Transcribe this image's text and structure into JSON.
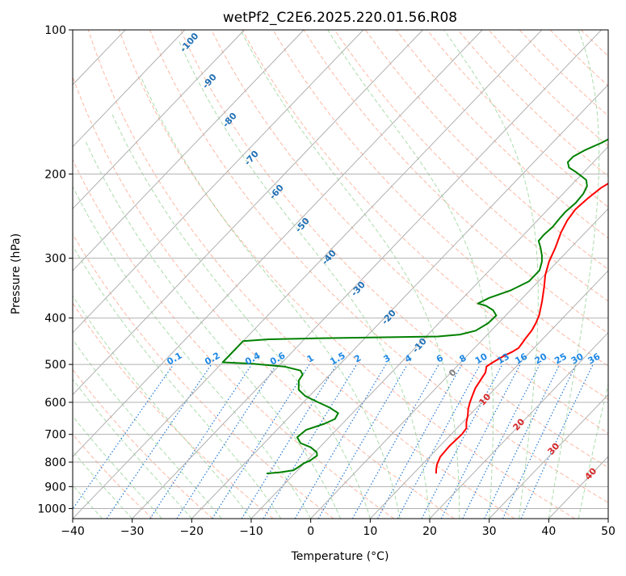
{
  "chart_data": {
    "type": "line",
    "title": "wetPf2_C2E6.2025.220.01.56.R08",
    "xlabel": "Temperature (°C)",
    "ylabel": "Pressure (hPa)",
    "xlim": [
      -40,
      50
    ],
    "ylim": [
      1050,
      100
    ],
    "y_scale": "log",
    "grid": true,
    "x_ticks": [
      -40,
      -30,
      -20,
      -10,
      0,
      10,
      20,
      30,
      40,
      50
    ],
    "y_ticks": [
      100,
      200,
      300,
      400,
      500,
      600,
      700,
      800,
      900,
      1000
    ],
    "x_tick_labels": [
      "−40",
      "−30",
      "−20",
      "−10",
      "0",
      "10",
      "20",
      "30",
      "40",
      "50"
    ],
    "y_tick_labels": [
      "100",
      "200",
      "300",
      "400",
      "500",
      "600",
      "700",
      "800",
      "900",
      "1000"
    ],
    "series": [
      {
        "color": "#ff0000",
        "points": [
          [
            13.8,
            845
          ],
          [
            13.2,
            830
          ],
          [
            12.5,
            810
          ],
          [
            11.8,
            780
          ],
          [
            11.6,
            740
          ],
          [
            11.8,
            700
          ],
          [
            11.6,
            680
          ],
          [
            10.6,
            660
          ],
          [
            9.8,
            640
          ],
          [
            8.8,
            620
          ],
          [
            8,
            600
          ],
          [
            7.3,
            580
          ],
          [
            6.6,
            560
          ],
          [
            6.2,
            540
          ],
          [
            5.8,
            520
          ],
          [
            5,
            505
          ],
          [
            5.4,
            495
          ],
          [
            6.2,
            480
          ],
          [
            7,
            470
          ],
          [
            7.4,
            462
          ],
          [
            7.2,
            450
          ],
          [
            7,
            440
          ],
          [
            6.8,
            425
          ],
          [
            6.3,
            410
          ],
          [
            5.6,
            395
          ],
          [
            3.9,
            370
          ],
          [
            1.9,
            345
          ],
          [
            0.1,
            325
          ],
          [
            -1.4,
            305
          ],
          [
            -2.6,
            285
          ],
          [
            -4.1,
            265
          ],
          [
            -5,
            250
          ],
          [
            -5.4,
            237
          ],
          [
            -5.1,
            225
          ],
          [
            -4.6,
            214
          ],
          [
            -3.8,
            207
          ],
          [
            -2.4,
            201
          ],
          [
            0.1,
            196
          ],
          [
            2.2,
            192
          ],
          [
            4.6,
            186
          ],
          [
            6.6,
            178
          ],
          [
            8.2,
            170
          ],
          [
            9.7,
            162
          ],
          [
            11,
            154
          ],
          [
            12.4,
            146
          ],
          [
            14,
            139
          ],
          [
            15.5,
            133
          ],
          [
            16.9,
            127
          ],
          [
            17.8,
            120
          ],
          [
            18.8,
            114
          ],
          [
            20.4,
            109
          ],
          [
            22.4,
            104
          ],
          [
            24,
            100
          ]
        ]
      },
      {
        "color": "#008000",
        "points": [
          [
            -14.7,
            845
          ],
          [
            -12.6,
            840
          ],
          [
            -10.7,
            832
          ],
          [
            -10.4,
            820
          ],
          [
            -10.1,
            805
          ],
          [
            -9.5,
            795
          ],
          [
            -9.1,
            775
          ],
          [
            -9.7,
            763
          ],
          [
            -11.5,
            745
          ],
          [
            -13.9,
            730
          ],
          [
            -15.4,
            710
          ],
          [
            -15.1,
            685
          ],
          [
            -13,
            665
          ],
          [
            -12,
            650
          ],
          [
            -12.4,
            632
          ],
          [
            -14.8,
            615
          ],
          [
            -17.5,
            600
          ],
          [
            -20.7,
            582
          ],
          [
            -22.8,
            565
          ],
          [
            -24.3,
            540
          ],
          [
            -24.6,
            525
          ],
          [
            -25.6,
            515
          ],
          [
            -29,
            505
          ],
          [
            -35,
            498
          ],
          [
            -40,
            495
          ],
          [
            -40,
            447
          ],
          [
            -36,
            443
          ],
          [
            -28,
            441
          ],
          [
            -18,
            439
          ],
          [
            -8,
            437
          ],
          [
            -4.6,
            433
          ],
          [
            -2.6,
            425
          ],
          [
            -1.7,
            410
          ],
          [
            -1.6,
            395
          ],
          [
            -3,
            385
          ],
          [
            -4.9,
            377
          ],
          [
            -6.6,
            373
          ],
          [
            -5.6,
            363
          ],
          [
            -3.2,
            350
          ],
          [
            -1.6,
            335
          ],
          [
            -1.6,
            318
          ],
          [
            -2.6,
            305
          ],
          [
            -3.6,
            296
          ],
          [
            -5.1,
            285
          ],
          [
            -6.5,
            276
          ],
          [
            -6.6,
            268
          ],
          [
            -6.4,
            258
          ],
          [
            -6.6,
            248
          ],
          [
            -6.7,
            240
          ],
          [
            -6.4,
            230
          ],
          [
            -6.6,
            220
          ],
          [
            -7.2,
            212
          ],
          [
            -8.3,
            206
          ],
          [
            -9.8,
            202
          ],
          [
            -11.4,
            198
          ],
          [
            -13.2,
            194
          ],
          [
            -14.3,
            189
          ],
          [
            -14.3,
            184
          ],
          [
            -13.3,
            178
          ],
          [
            -11.7,
            172
          ],
          [
            -10.6,
            166
          ],
          [
            -9.6,
            160
          ],
          [
            -9.1,
            154
          ],
          [
            -8.9,
            148
          ],
          [
            -8.5,
            141
          ],
          [
            -7.7,
            135
          ],
          [
            -6.9,
            129
          ],
          [
            -5.9,
            123
          ],
          [
            -4.5,
            117
          ],
          [
            -3.1,
            112
          ],
          [
            -1.7,
            107
          ],
          [
            -0.6,
            103
          ],
          [
            -0.1,
            100
          ]
        ]
      }
    ]
  },
  "overlays": {
    "potential_temperature_labels": [
      "-100",
      "-90",
      "-80",
      "-70",
      "-60",
      "-50",
      "-40",
      "-30",
      "-20",
      "-10"
    ],
    "mixing_ratio_labels": [
      "0.1",
      "0.2",
      "0.4",
      "0.6",
      "1",
      "1.5",
      "2",
      "3",
      "4",
      "6",
      "8",
      "10",
      "13",
      "16",
      "20",
      "25",
      "30",
      "36"
    ],
    "moist_adiabat_labels": [
      "0",
      "10",
      "20",
      "30",
      "40"
    ],
    "colors": {
      "frame": "#000000",
      "grid": "#b0b0b0",
      "dry_adiabat": "#fb9a7c",
      "moist_adiabat": "#8fd08f",
      "mixing_ratio": "#1f77d4",
      "theta_label": "#1f6fb4",
      "mixing_label": "#1e88e5",
      "moist_label": "#d62728",
      "zero_label": "#808080",
      "tan_line": "#d2b48c"
    }
  }
}
